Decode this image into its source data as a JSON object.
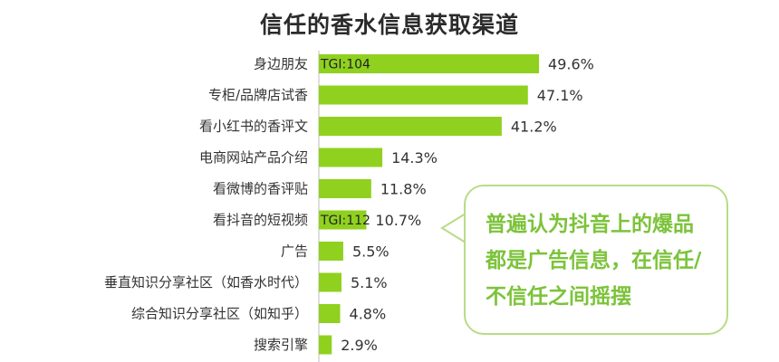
{
  "chart_data": {
    "type": "bar",
    "orientation": "horizontal",
    "title": "信任的香水信息获取渠道",
    "categories": [
      "身边朋友",
      "专柜/品牌店试香",
      "看小红书的香评文",
      "电商网站产品介绍",
      "看微博的香评贴",
      "看抖音的短视频",
      "广告",
      "垂直知识分享社区（如香水时代）",
      "综合知识分享社区（如知乎）",
      "搜索引擎"
    ],
    "values": [
      49.6,
      47.1,
      41.2,
      14.3,
      11.8,
      10.7,
      5.5,
      5.1,
      4.8,
      2.9
    ],
    "value_labels": [
      "49.6%",
      "47.1%",
      "41.2%",
      "14.3%",
      "11.8%",
      "10.7%",
      "5.5%",
      "5.1%",
      "4.8%",
      "2.9%"
    ],
    "bar_annotations": {
      "0": "TGI:104",
      "5": "TGI:112"
    },
    "bar_color": "#8fd11e",
    "xlim": [
      0,
      100
    ]
  },
  "callout": {
    "text": "普遍认为抖音上的爆品都是广告信息，在信任/不信任之间摇摆",
    "color": "#7cc33a",
    "border_color": "#b8dc86"
  }
}
